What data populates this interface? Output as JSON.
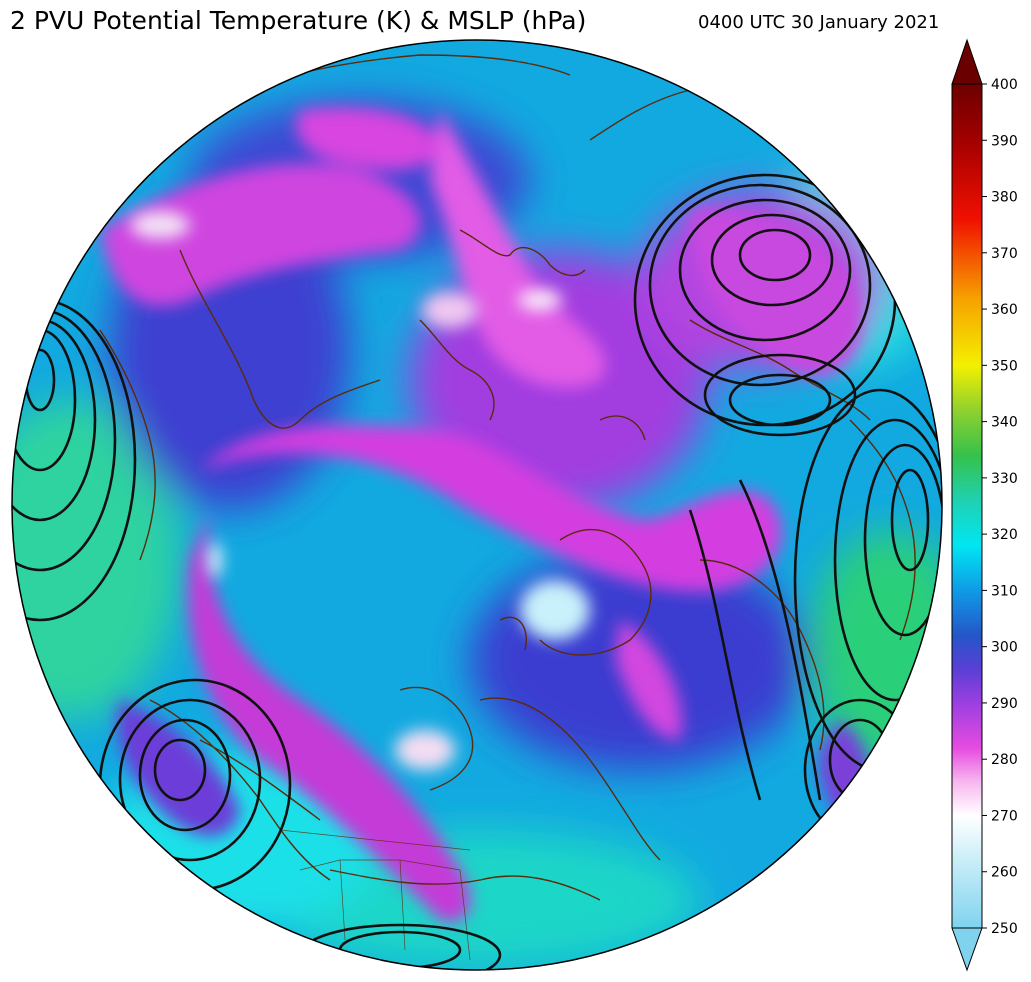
{
  "header": {
    "title": "2 PVU Potential Temperature (K) & MSLP (hPa)",
    "timestamp": "0400 UTC 30 January 2021"
  },
  "colorbar": {
    "ticks": [
      "400",
      "390",
      "380",
      "370",
      "360",
      "350",
      "340",
      "330",
      "320",
      "310",
      "300",
      "290",
      "280",
      "270",
      "260",
      "250"
    ],
    "min": 250,
    "max": 400,
    "stops": [
      {
        "value": 250,
        "color": "#7fd3ef"
      },
      {
        "value": 262,
        "color": "#c9eef8"
      },
      {
        "value": 270,
        "color": "#ffffff"
      },
      {
        "value": 276,
        "color": "#f7b7ef"
      },
      {
        "value": 282,
        "color": "#e64be0"
      },
      {
        "value": 290,
        "color": "#9b3fe0"
      },
      {
        "value": 296,
        "color": "#5a3fd6"
      },
      {
        "value": 302,
        "color": "#2456c8"
      },
      {
        "value": 310,
        "color": "#0f9be6"
      },
      {
        "value": 318,
        "color": "#00e6f2"
      },
      {
        "value": 326,
        "color": "#1fd1b0"
      },
      {
        "value": 334,
        "color": "#35c24a"
      },
      {
        "value": 342,
        "color": "#8fd12e"
      },
      {
        "value": 350,
        "color": "#f3f000"
      },
      {
        "value": 362,
        "color": "#f7a000"
      },
      {
        "value": 376,
        "color": "#f01000"
      },
      {
        "value": 390,
        "color": "#a30000"
      },
      {
        "value": 400,
        "color": "#6b0000"
      }
    ]
  },
  "map": {
    "background": "#12a9e0",
    "coastline_color": "#5a2a0a",
    "contour_color": "#111111"
  }
}
